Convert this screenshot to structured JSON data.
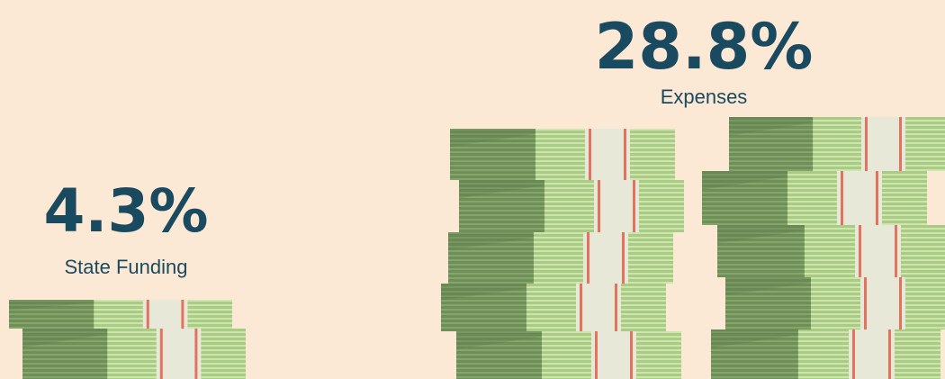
{
  "stats": [
    {
      "value": "4.3%",
      "label": "State Funding"
    },
    {
      "value": "28.8%",
      "label": "Expenses"
    }
  ]
}
